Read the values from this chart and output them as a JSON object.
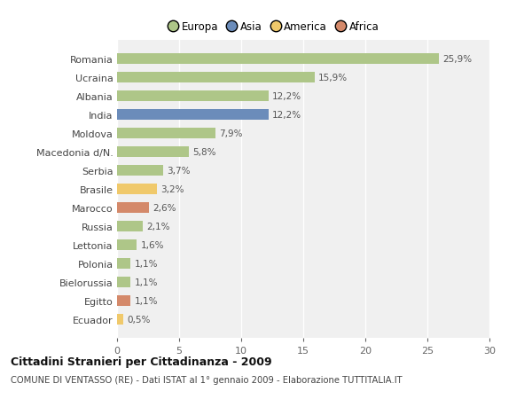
{
  "categories": [
    "Romania",
    "Ucraina",
    "Albania",
    "India",
    "Moldova",
    "Macedonia d/N.",
    "Serbia",
    "Brasile",
    "Marocco",
    "Russia",
    "Lettonia",
    "Polonia",
    "Bielorussia",
    "Egitto",
    "Ecuador"
  ],
  "values": [
    25.9,
    15.9,
    12.2,
    12.2,
    7.9,
    5.8,
    3.7,
    3.2,
    2.6,
    2.1,
    1.6,
    1.1,
    1.1,
    1.1,
    0.5
  ],
  "labels": [
    "25,9%",
    "15,9%",
    "12,2%",
    "12,2%",
    "7,9%",
    "5,8%",
    "3,7%",
    "3,2%",
    "2,6%",
    "2,1%",
    "1,6%",
    "1,1%",
    "1,1%",
    "1,1%",
    "0,5%"
  ],
  "colors": [
    "#aec688",
    "#aec688",
    "#aec688",
    "#6b8cba",
    "#aec688",
    "#aec688",
    "#aec688",
    "#f0c96b",
    "#d4896a",
    "#aec688",
    "#aec688",
    "#aec688",
    "#aec688",
    "#d4896a",
    "#f0c96b"
  ],
  "legend_labels": [
    "Europa",
    "Asia",
    "America",
    "Africa"
  ],
  "legend_colors": [
    "#aec688",
    "#6b8cba",
    "#f0c96b",
    "#d4896a"
  ],
  "xlim": [
    0,
    30
  ],
  "xticks": [
    0,
    5,
    10,
    15,
    20,
    25,
    30
  ],
  "title": "Cittadini Stranieri per Cittadinanza - 2009",
  "subtitle": "COMUNE DI VENTASSO (RE) - Dati ISTAT al 1° gennaio 2009 - Elaborazione TUTTITALIA.IT",
  "background_color": "#ffffff",
  "plot_bg_color": "#f0f0f0",
  "grid_color": "#ffffff"
}
